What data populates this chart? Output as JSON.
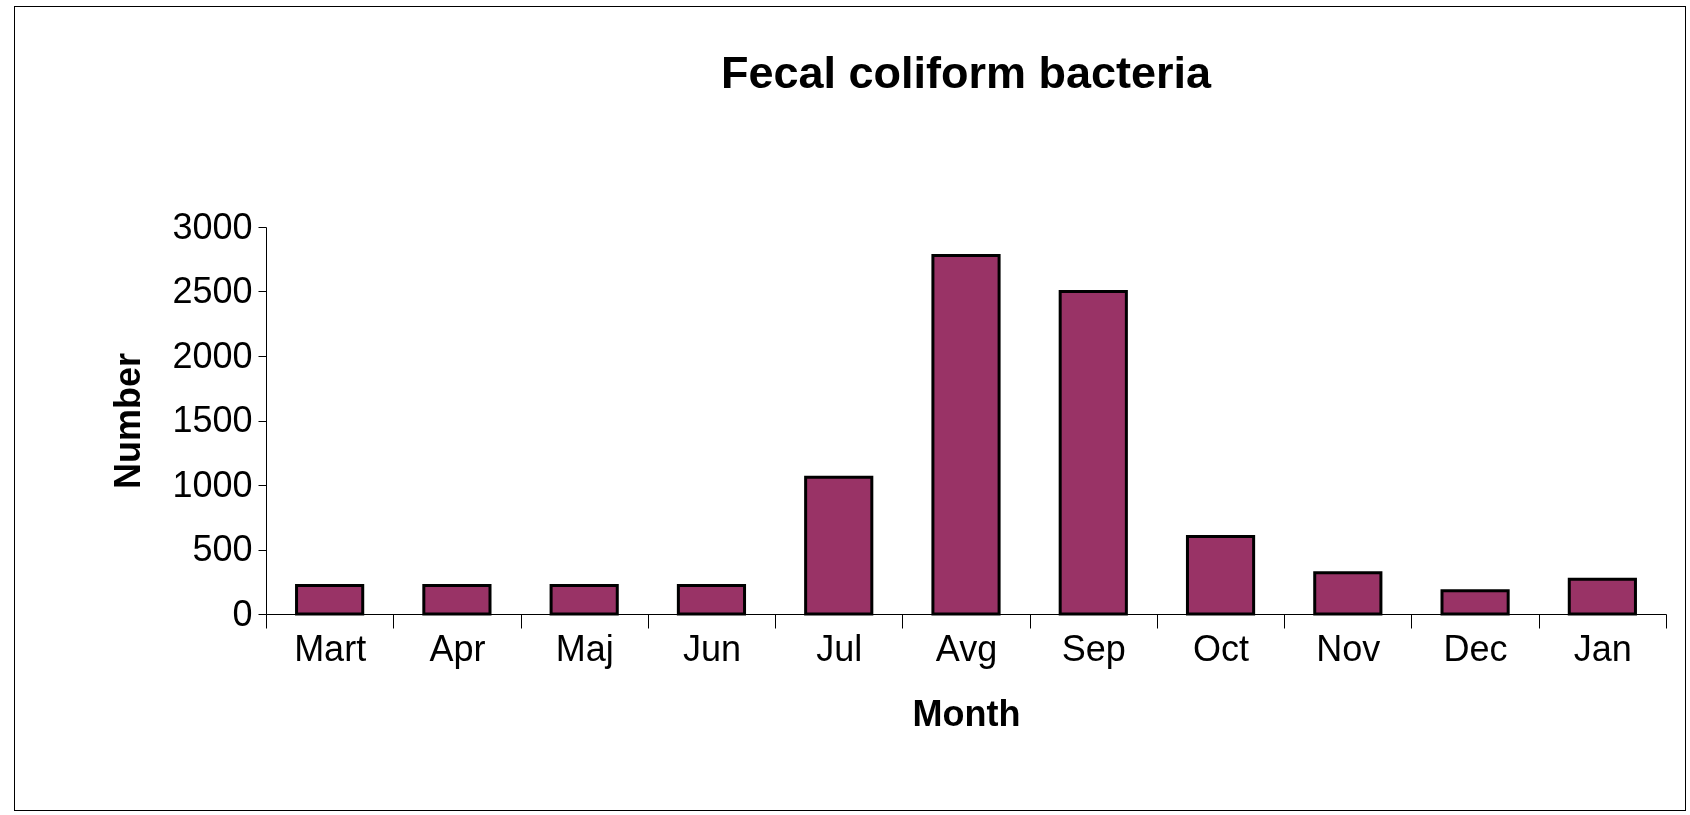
{
  "chart_data": {
    "type": "bar",
    "title": "Fecal coliform bacteria",
    "xlabel": "Month",
    "ylabel": "Number",
    "categories": [
      "Mart",
      "Apr",
      "Maj",
      "Jun",
      "Jul",
      "Avg",
      "Sep",
      "Oct",
      "Nov",
      "Dec",
      "Jan"
    ],
    "values": [
      220,
      220,
      220,
      220,
      1060,
      2780,
      2500,
      600,
      320,
      180,
      270
    ],
    "color": "#993366",
    "ylim": [
      0,
      3000
    ],
    "yticks": [
      0,
      500,
      1000,
      1500,
      2000,
      2500,
      3000
    ],
    "grid": false
  }
}
